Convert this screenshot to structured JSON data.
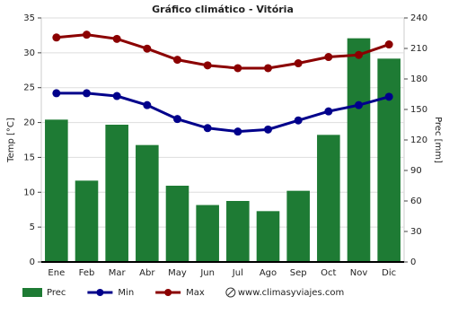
{
  "chart_data": {
    "type": "bar",
    "title": "Gráfico climático - Vitória",
    "categories": [
      "Ene",
      "Feb",
      "Mar",
      "Abr",
      "May",
      "Jun",
      "Jul",
      "Ago",
      "Sep",
      "Oct",
      "Nov",
      "Dic"
    ],
    "series": [
      {
        "name": "Prec",
        "type": "bar",
        "axis": "y2",
        "color": "#1e7b34",
        "values": [
          140,
          80,
          135,
          115,
          75,
          56,
          60,
          50,
          70,
          125,
          220,
          200
        ]
      },
      {
        "name": "Min",
        "type": "line",
        "axis": "y",
        "color": "#00008b",
        "values": [
          24.2,
          24.2,
          23.8,
          22.5,
          20.5,
          19.2,
          18.7,
          19,
          20.3,
          21.6,
          22.5,
          23.7
        ]
      },
      {
        "name": "Max",
        "type": "line",
        "axis": "y",
        "color": "#8b0000",
        "values": [
          32.2,
          32.6,
          32,
          30.6,
          29,
          28.2,
          27.8,
          27.8,
          28.5,
          29.4,
          29.7,
          31.2
        ]
      }
    ],
    "ylabel": "Temp [°C]",
    "y2label": "Prec [mm]",
    "ylim": [
      0,
      35
    ],
    "yticks": [
      0,
      5,
      10,
      15,
      20,
      25,
      30,
      35
    ],
    "y2lim": [
      0,
      240
    ],
    "y2ticks": [
      0,
      30,
      60,
      90,
      120,
      150,
      180,
      210,
      240
    ],
    "grid": true,
    "legend": "bottom",
    "source": "www.climasyviajes.com"
  }
}
